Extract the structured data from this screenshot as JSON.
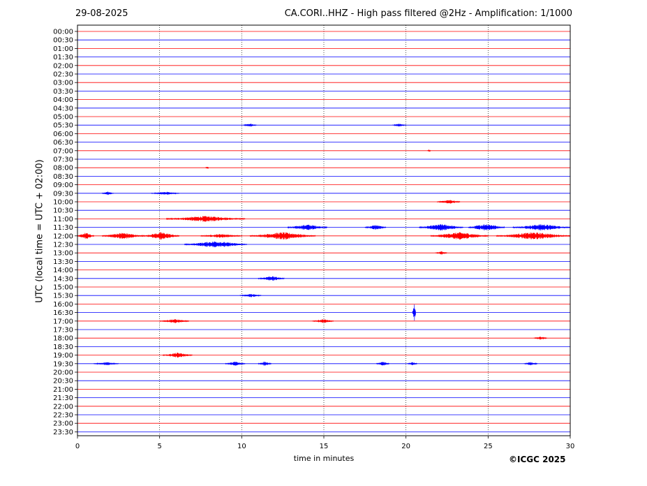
{
  "header": {
    "date": "29-08-2025",
    "title": "CA.CORI..HHZ - High pass filtered @2Hz - Amplification: 1/1000"
  },
  "footer": {
    "copyright": "©ICGC 2025"
  },
  "chart_data": {
    "type": "line",
    "xlabel": "time in minutes",
    "ylabel": "UTC (local time = UTC + 02:00)",
    "xlim": [
      0,
      30
    ],
    "x_ticks": [
      0,
      5,
      10,
      15,
      20,
      25,
      30
    ],
    "x_tick_labels": [
      "0",
      "5",
      "10",
      "15",
      "20",
      "25",
      "30"
    ],
    "vertical_grid": [
      5,
      10,
      15,
      20,
      25
    ],
    "grid": "dotted vertical lines",
    "colors": {
      "even_row": "#ff0000",
      "odd_row": "#0000ff",
      "axis": "#000000"
    },
    "rows": [
      "00:00",
      "00:30",
      "01:00",
      "01:30",
      "02:00",
      "02:30",
      "03:00",
      "03:30",
      "04:00",
      "04:30",
      "05:00",
      "05:30",
      "06:00",
      "06:30",
      "07:00",
      "07:30",
      "08:00",
      "08:30",
      "09:00",
      "09:30",
      "10:00",
      "10:30",
      "11:00",
      "11:30",
      "12:00",
      "12:30",
      "13:00",
      "13:30",
      "14:00",
      "14:30",
      "15:00",
      "15:30",
      "16:00",
      "16:30",
      "17:00",
      "17:30",
      "18:00",
      "18:30",
      "19:00",
      "19:30",
      "20:00",
      "20:30",
      "21:00",
      "21:30",
      "22:00",
      "22:30",
      "23:00",
      "23:30"
    ],
    "bursts": [
      {
        "row": "05:30",
        "start": 10.1,
        "end": 10.9,
        "amp": 0.2
      },
      {
        "row": "05:30",
        "start": 19.2,
        "end": 20.0,
        "amp": 0.2
      },
      {
        "row": "07:00",
        "start": 21.3,
        "end": 21.5,
        "amp": 0.15
      },
      {
        "row": "08:00",
        "start": 7.8,
        "end": 8.0,
        "amp": 0.15
      },
      {
        "row": "09:30",
        "start": 1.5,
        "end": 2.2,
        "amp": 0.2
      },
      {
        "row": "09:30",
        "start": 4.5,
        "end": 6.2,
        "amp": 0.2
      },
      {
        "row": "10:00",
        "start": 21.9,
        "end": 23.3,
        "amp": 0.25
      },
      {
        "row": "11:00",
        "start": 5.4,
        "end": 10.2,
        "amp": 0.35
      },
      {
        "row": "11:30",
        "start": 12.8,
        "end": 15.2,
        "amp": 0.35
      },
      {
        "row": "11:30",
        "start": 17.5,
        "end": 18.8,
        "amp": 0.3
      },
      {
        "row": "11:30",
        "start": 20.8,
        "end": 23.5,
        "amp": 0.4
      },
      {
        "row": "11:30",
        "start": 23.8,
        "end": 26.0,
        "amp": 0.45
      },
      {
        "row": "11:30",
        "start": 26.5,
        "end": 30.0,
        "amp": 0.4
      },
      {
        "row": "12:00",
        "start": 0.0,
        "end": 1.0,
        "amp": 0.4
      },
      {
        "row": "12:00",
        "start": 1.5,
        "end": 4.0,
        "amp": 0.4
      },
      {
        "row": "12:00",
        "start": 4.0,
        "end": 6.2,
        "amp": 0.45
      },
      {
        "row": "12:00",
        "start": 7.5,
        "end": 10.0,
        "amp": 0.25
      },
      {
        "row": "12:00",
        "start": 10.5,
        "end": 14.5,
        "amp": 0.45
      },
      {
        "row": "12:00",
        "start": 21.5,
        "end": 25.0,
        "amp": 0.45
      },
      {
        "row": "12:00",
        "start": 25.5,
        "end": 30.0,
        "amp": 0.45
      },
      {
        "row": "12:30",
        "start": 6.5,
        "end": 10.3,
        "amp": 0.4
      },
      {
        "row": "13:00",
        "start": 21.8,
        "end": 22.5,
        "amp": 0.2
      },
      {
        "row": "14:30",
        "start": 11.0,
        "end": 12.6,
        "amp": 0.3
      },
      {
        "row": "15:30",
        "start": 9.9,
        "end": 11.2,
        "amp": 0.2
      },
      {
        "row": "16:30",
        "start": 20.4,
        "end": 20.6,
        "amp": 1.3
      },
      {
        "row": "17:00",
        "start": 5.0,
        "end": 6.8,
        "amp": 0.25
      },
      {
        "row": "17:00",
        "start": 14.3,
        "end": 15.6,
        "amp": 0.25
      },
      {
        "row": "18:00",
        "start": 27.8,
        "end": 28.6,
        "amp": 0.2
      },
      {
        "row": "19:00",
        "start": 5.2,
        "end": 7.0,
        "amp": 0.3
      },
      {
        "row": "19:30",
        "start": 1.0,
        "end": 2.5,
        "amp": 0.2
      },
      {
        "row": "19:30",
        "start": 9.0,
        "end": 10.2,
        "amp": 0.25
      },
      {
        "row": "19:30",
        "start": 11.0,
        "end": 11.8,
        "amp": 0.25
      },
      {
        "row": "19:30",
        "start": 18.2,
        "end": 19.0,
        "amp": 0.25
      },
      {
        "row": "19:30",
        "start": 20.1,
        "end": 20.7,
        "amp": 0.2
      },
      {
        "row": "19:30",
        "start": 27.2,
        "end": 28.0,
        "amp": 0.2
      }
    ]
  }
}
